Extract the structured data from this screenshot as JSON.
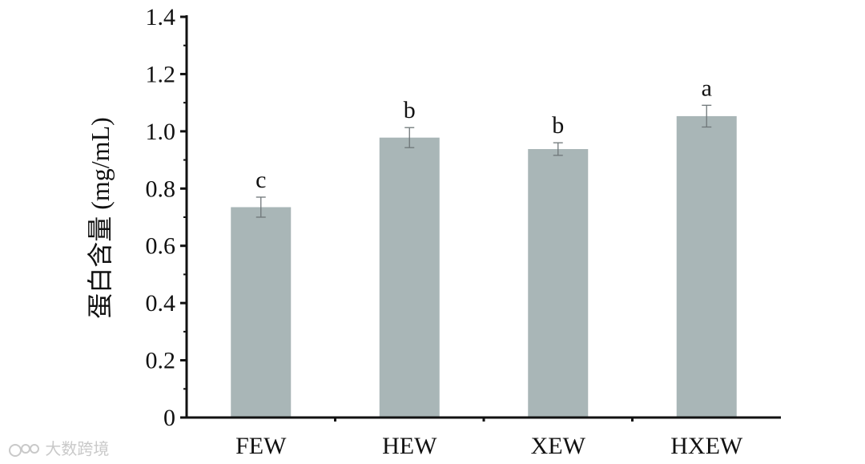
{
  "chart_data": {
    "type": "bar",
    "categories": [
      "FEW",
      "HEW",
      "XEW",
      "HXEW"
    ],
    "values": [
      0.735,
      0.978,
      0.938,
      1.053
    ],
    "errors": [
      0.035,
      0.035,
      0.022,
      0.038
    ],
    "significance": [
      "c",
      "b",
      "b",
      "a"
    ],
    "title": "",
    "xlabel": "",
    "ylabel": "蛋白含量 (mg/mL)",
    "ylim": [
      0,
      1.4
    ],
    "yticks": [
      0,
      0.2,
      0.4,
      0.6,
      0.8,
      1.0,
      1.2,
      1.4
    ],
    "ytick_labels": [
      "0",
      "0.2",
      "0.4",
      "0.6",
      "0.8",
      "1.0",
      "1.2",
      "1.4"
    ],
    "grid": false,
    "bar_color": "#a9b6b7",
    "axis_color": "#111111"
  },
  "watermark": {
    "text": "大数跨境",
    "icon": "logo-icon"
  }
}
